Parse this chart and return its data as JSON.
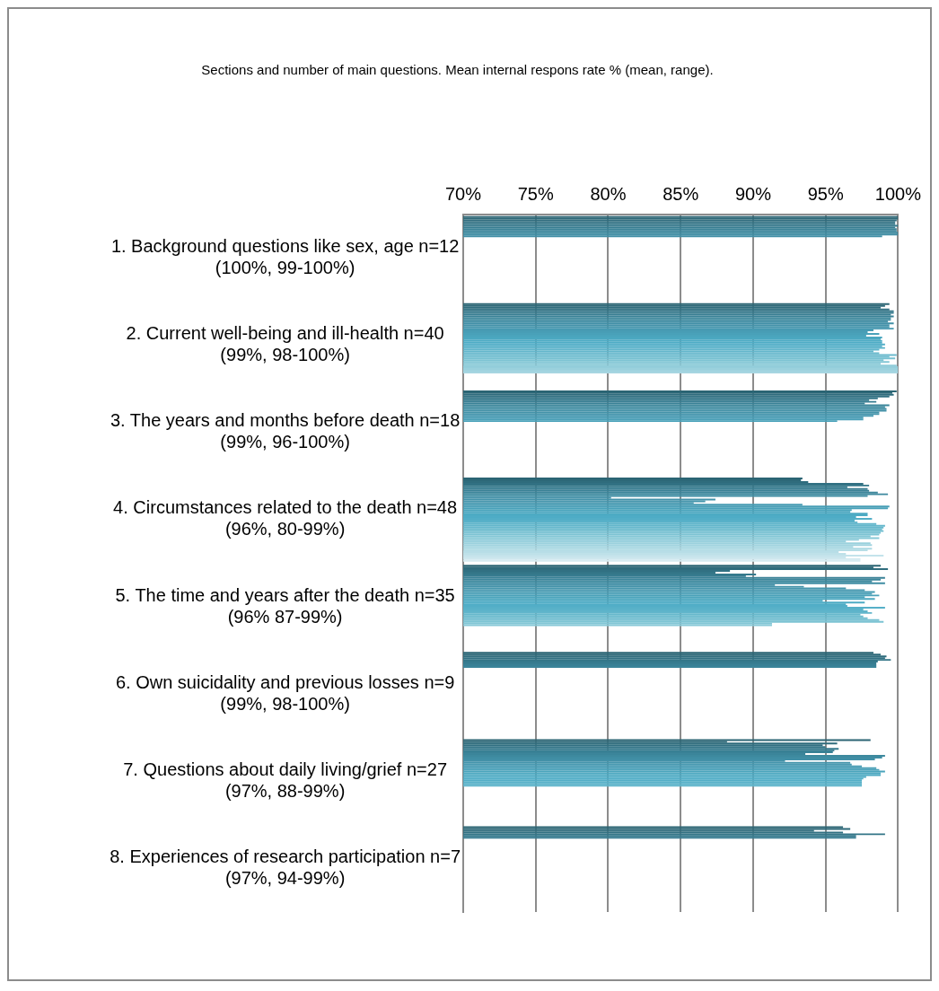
{
  "chart_data": {
    "type": "bar",
    "orientation": "horizontal",
    "title": "Sections and number of main questions. Mean internal respons rate % (mean, range).",
    "categories": [
      "1. Background questions like sex, age n=12\n(100%, 99-100%)",
      "2. Current well-being and ill-health n=40\n(99%, 98-100%)",
      "3. The years and months before death n=18\n(99%, 96-100%)",
      "4. Circumstances related to the death n=48\n(96%, 80-99%)",
      "5. The time and years after the death n=35\n(96% 87-99%)",
      "6. Own suicidality and previous losses n=9\n(99%, 98-100%)",
      "7. Questions about daily living/grief n=27\n(97%, 88-99%)",
      "8. Experiences of research participation n=7\n(97%, 94-99%)"
    ],
    "xlim": [
      70,
      100
    ],
    "xticks": [
      {
        "value": 70,
        "label": "70%"
      },
      {
        "value": 75,
        "label": "75%"
      },
      {
        "value": 80,
        "label": "80%"
      },
      {
        "value": 85,
        "label": "85%"
      },
      {
        "value": 90,
        "label": "90%"
      },
      {
        "value": 95,
        "label": "95%"
      },
      {
        "value": 100,
        "label": "100%"
      }
    ],
    "grid": "x",
    "series": [
      {
        "color": "#2b6473",
        "values": [
          100,
          99.4,
          99.9,
          93.4,
          98.8,
          98.3,
          98.1,
          96.2
        ]
      },
      {
        "color": "#2d6878",
        "values": [
          100,
          99.1,
          99.6,
          93.3,
          98.3,
          98.8,
          88.2,
          96.7
        ]
      },
      {
        "color": "#2f6c7d",
        "values": [
          99.9,
          98.8,
          99.7,
          93.8,
          99.3,
          99.2,
          95.8,
          94.2
        ]
      },
      {
        "color": "#317082",
        "values": [
          99.8,
          99.4,
          99.4,
          97.6,
          88.4,
          99.1,
          94.8,
          96.2
        ]
      },
      {
        "color": "#337587",
        "values": [
          99.8,
          99.7,
          98.6,
          98.0,
          87.4,
          99.5,
          95.0,
          99.1
        ]
      },
      {
        "color": "#35798c",
        "values": [
          100,
          99.7,
          98.0,
          96.5,
          90.2,
          98.6,
          95.9,
          97.1
        ]
      },
      {
        "color": "#377d91",
        "values": [
          99.8,
          99.5,
          98.5,
          97.9,
          89.5,
          98.5,
          95.6,
          97.1
        ]
      },
      {
        "color": "#398196",
        "values": [
          99.9,
          99.7,
          97.7,
          98.0,
          99.1,
          98.5,
          95.5,
          null
        ]
      },
      {
        "color": "#3b859a",
        "values": [
          99.9,
          99.5,
          99.4,
          98.6,
          98.8,
          98.5,
          93.6,
          null
        ]
      },
      {
        "color": "#3d899e",
        "values": [
          100,
          99.5,
          99.1,
          99.3,
          98.2,
          null,
          99.1,
          null
        ]
      },
      {
        "color": "#3f8da3",
        "values": [
          100,
          99.3,
          99.2,
          97.9,
          99.1,
          null,
          98.9,
          null
        ]
      },
      {
        "color": "#418fa6",
        "values": [
          98.9,
          99.7,
          99.2,
          80.2,
          91.5,
          null,
          98.4,
          null
        ]
      },
      {
        "color": "#4392a9",
        "values": [
          null,
          99.4,
          98.7,
          87.4,
          93.5,
          null,
          92.2,
          null
        ]
      },
      {
        "color": "#4595ac",
        "values": [
          null,
          99.4,
          98.7,
          86.7,
          96.4,
          null,
          96.7,
          null
        ]
      },
      {
        "color": "#4698b0",
        "values": [
          null,
          99.7,
          98.3,
          85.9,
          97.7,
          null,
          96.8,
          null
        ]
      },
      {
        "color": "#479bb3",
        "values": [
          null,
          98.3,
          97.6,
          93.4,
          98.4,
          null,
          97.5,
          null
        ]
      },
      {
        "color": "#489eb6",
        "values": [
          null,
          97.9,
          97.6,
          99.4,
          98.2,
          null,
          98.5,
          null
        ]
      },
      {
        "color": "#49a1b9",
        "values": [
          null,
          98.7,
          95.8,
          99.3,
          98.7,
          null,
          98.7,
          null
        ]
      },
      {
        "color": "#4aa4bc",
        "values": [
          null,
          97.8,
          null,
          96.8,
          97.7,
          null,
          99.1,
          null
        ]
      },
      {
        "color": "#4ba7bf",
        "values": [
          null,
          98.9,
          null,
          96.7,
          98.4,
          null,
          98.8,
          null
        ]
      },
      {
        "color": "#4ca9c2",
        "values": [
          null,
          98.8,
          null,
          97.9,
          94.8,
          null,
          98.8,
          null
        ]
      },
      {
        "color": "#4dabc4",
        "values": [
          null,
          98.9,
          null,
          97.9,
          97.7,
          null,
          97.8,
          null
        ]
      },
      {
        "color": "#4eacc6",
        "values": [
          null,
          98.9,
          null,
          97.1,
          96.4,
          null,
          97.6,
          null
        ]
      },
      {
        "color": "#52aec7",
        "values": [
          null,
          99.1,
          null,
          98.2,
          96.5,
          null,
          97.5,
          null
        ]
      },
      {
        "color": "#56b0c8",
        "values": [
          null,
          98.9,
          null,
          97.0,
          99.1,
          null,
          97.5,
          null
        ]
      },
      {
        "color": "#5ab2c9",
        "values": [
          null,
          99.1,
          null,
          97.2,
          97.6,
          null,
          97.5,
          null
        ]
      },
      {
        "color": "#5eb4ca",
        "values": [
          null,
          98.7,
          null,
          98.5,
          97.9,
          null,
          97.5,
          null
        ]
      },
      {
        "color": "#62b6cb",
        "values": [
          null,
          98.3,
          null,
          99.1,
          98.2,
          null,
          null,
          null
        ]
      },
      {
        "color": "#66b8cc",
        "values": [
          null,
          98.7,
          null,
          99.0,
          97.4,
          null,
          null,
          null
        ]
      },
      {
        "color": "#6abacd",
        "values": [
          null,
          99.9,
          null,
          98.9,
          97.6,
          null,
          null,
          null
        ]
      },
      {
        "color": "#70bdcf",
        "values": [
          null,
          99.4,
          null,
          99.0,
          97.9,
          null,
          null,
          null
        ]
      },
      {
        "color": "#76c0d1",
        "values": [
          null,
          99.8,
          null,
          98.8,
          98.7,
          null,
          null,
          null
        ]
      },
      {
        "color": "#7cc3d3",
        "values": [
          null,
          99.0,
          null,
          98.7,
          99.0,
          null,
          null,
          null
        ]
      },
      {
        "color": "#82c6d5",
        "values": [
          null,
          99.4,
          null,
          98.1,
          91.3,
          null,
          null,
          null
        ]
      },
      {
        "color": "#88c9d7",
        "values": [
          null,
          98.8,
          null,
          98.7,
          91.3,
          null,
          null,
          null
        ]
      },
      {
        "color": "#8ecbd9",
        "values": [
          null,
          99.9,
          null,
          97.3,
          null,
          null,
          null,
          null
        ]
      },
      {
        "color": "#94cedb",
        "values": [
          null,
          100,
          null,
          96.4,
          null,
          null,
          null,
          null
        ]
      },
      {
        "color": "#9ad1dd",
        "values": [
          null,
          100,
          null,
          98.1,
          null,
          null,
          null,
          null
        ]
      },
      {
        "color": "#a0d3df",
        "values": [
          null,
          100,
          null,
          98.2,
          null,
          null,
          null,
          null
        ]
      },
      {
        "color": "#a6d6e1",
        "values": [
          null,
          100,
          null,
          96.9,
          null,
          null,
          null,
          null
        ]
      },
      {
        "color": "#acd9e3",
        "values": [
          null,
          null,
          null,
          98.2,
          null,
          null,
          null,
          null
        ]
      },
      {
        "color": "#b2dbe5",
        "values": [
          null,
          null,
          null,
          97.9,
          null,
          null,
          null,
          null
        ]
      },
      {
        "color": "#b8dee7",
        "values": [
          null,
          null,
          null,
          95.9,
          null,
          null,
          null,
          null
        ]
      },
      {
        "color": "#bee1e9",
        "values": [
          null,
          null,
          null,
          96.4,
          null,
          null,
          null,
          null
        ]
      },
      {
        "color": "#c4e3eb",
        "values": [
          null,
          null,
          null,
          99.0,
          null,
          null,
          null,
          null
        ]
      },
      {
        "color": "#cae6ed",
        "values": [
          null,
          null,
          null,
          96.4,
          null,
          null,
          null,
          null
        ]
      },
      {
        "color": "#d0e8ef",
        "values": [
          null,
          null,
          null,
          97.4,
          null,
          null,
          null,
          null
        ]
      },
      {
        "color": "#d6ebf1",
        "values": [
          null,
          null,
          null,
          97.4,
          null,
          null,
          null,
          null
        ]
      }
    ]
  }
}
